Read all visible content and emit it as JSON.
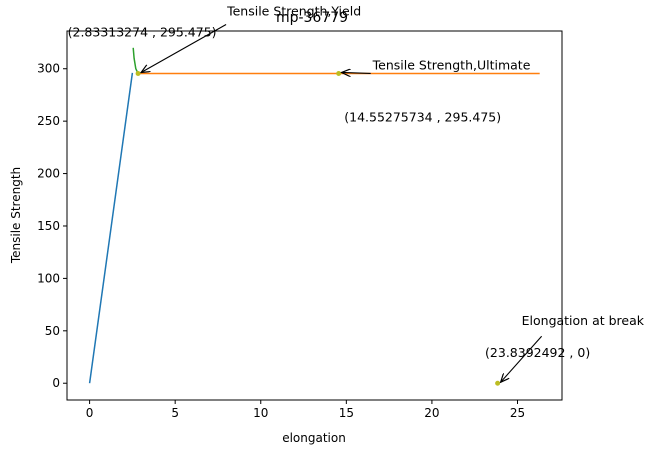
{
  "chart_data": {
    "type": "line",
    "title": "mp-36779",
    "xlabel": "elongation",
    "ylabel": "Tensile Strength",
    "xlim": [
      -1.32,
      27.6
    ],
    "ylim": [
      -16,
      336
    ],
    "xticks": [
      0,
      5,
      10,
      15,
      20,
      25
    ],
    "yticks": [
      0,
      50,
      100,
      150,
      200,
      250,
      300
    ],
    "grid": false,
    "series": [
      {
        "color": "#1f77b4",
        "x": [
          0,
          2.5
        ],
        "y": [
          0,
          296
        ]
      },
      {
        "color": "#ff7f0e",
        "x": [
          2.83313274,
          26.3
        ],
        "y": [
          295.475,
          295.475
        ]
      },
      {
        "color": "#2ca02c",
        "x": [
          2.55,
          2.6,
          2.7,
          2.83313274
        ],
        "y": [
          320,
          310,
          300,
          295.475
        ]
      }
    ],
    "points": [
      {
        "x": 2.83313274,
        "y": 295.475,
        "color": "#bcbd22"
      },
      {
        "x": 14.55275734,
        "y": 295.475,
        "color": "#bcbd22"
      },
      {
        "x": 23.8392492,
        "y": 0,
        "color": "#bcbd22"
      }
    ],
    "annotations": [
      {
        "label": "Tensile Strength,Yield",
        "coords": "(2.83313274 , 295.475)",
        "x": 2.83313274,
        "y": 295.475
      },
      {
        "label": "Tensile Strength,Ultimate",
        "coords": "(14.55275734 , 295.475)",
        "x": 14.55275734,
        "y": 295.475
      },
      {
        "label": "Elongation at break",
        "coords": "(23.8392492 , 0)",
        "x": 23.8392492,
        "y": 0
      }
    ]
  }
}
